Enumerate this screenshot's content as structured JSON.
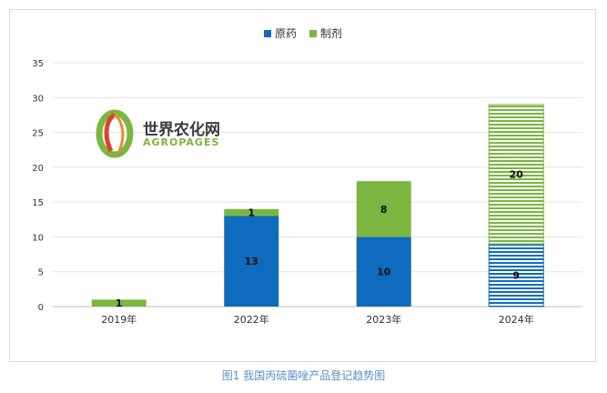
{
  "chart_data": {
    "type": "bar",
    "stacked": true,
    "categories": [
      "2019年",
      "2022年",
      "2023年",
      "2024年"
    ],
    "series": [
      {
        "name": "原药",
        "values": [
          0,
          13,
          10,
          9
        ],
        "color": "#0f6bbd"
      },
      {
        "name": "制剂",
        "values": [
          1,
          1,
          8,
          20
        ],
        "color": "#7ab640"
      }
    ],
    "hatched_categories": [
      "2024年"
    ],
    "ylim": [
      0,
      35
    ],
    "yticks": [
      0,
      5,
      10,
      15,
      20,
      25,
      30,
      35
    ],
    "grid": true,
    "legend": "top-center",
    "data_labels": [
      {
        "category": "2019年",
        "series": "制剂",
        "value": "1"
      },
      {
        "category": "2022年",
        "series": "原药",
        "value": "13"
      },
      {
        "category": "2022年",
        "series": "制剂",
        "value": "1"
      },
      {
        "category": "2023年",
        "series": "原药",
        "value": "10"
      },
      {
        "category": "2023年",
        "series": "制剂",
        "value": "8"
      },
      {
        "category": "2024年",
        "series": "原药",
        "value": "9"
      },
      {
        "category": "2024年",
        "series": "制剂",
        "value": "20"
      }
    ]
  },
  "logo": {
    "title": "世界农化网",
    "subtitle": "AGROPAGES"
  },
  "caption": "图1 我国丙硫菌唑产品登记趋势图"
}
